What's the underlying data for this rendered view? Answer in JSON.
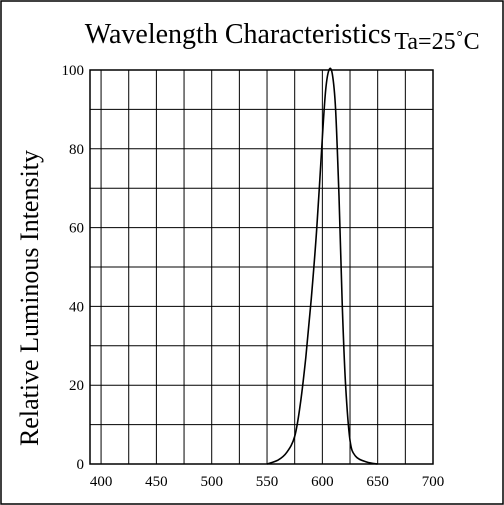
{
  "chart_data": {
    "type": "line",
    "title": "Wavelength Characteristics",
    "condition": "Ta=25˚C",
    "xlabel": "",
    "ylabel": "Relative Luminous Intensity",
    "xlim": [
      390,
      700
    ],
    "ylim": [
      0,
      100
    ],
    "x_ticks": [
      400,
      450,
      500,
      550,
      600,
      650,
      700
    ],
    "y_ticks": [
      0,
      20,
      40,
      60,
      80,
      100
    ],
    "grid": true,
    "legend": "none",
    "series": [
      {
        "x": [
          550,
          560,
          568,
          575,
          580,
          585,
          590,
          595,
          600,
          603,
          606,
          609,
          612,
          615,
          618,
          621,
          625,
          630,
          640,
          650
        ],
        "y": [
          0,
          1,
          3,
          7,
          15,
          27,
          42,
          60,
          83,
          95,
          100,
          99,
          90,
          68,
          40,
          20,
          6,
          2,
          0.5,
          0
        ]
      }
    ],
    "colors": {
      "line": "#000000",
      "grid": "#000000",
      "background": "#ffffff"
    }
  }
}
